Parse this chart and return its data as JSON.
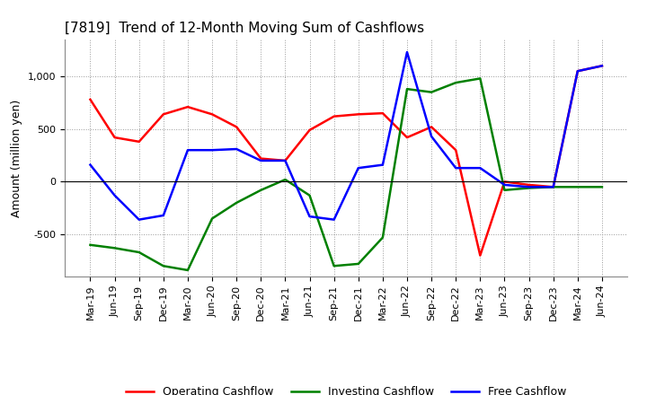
{
  "title": "[7819]  Trend of 12-Month Moving Sum of Cashflows",
  "ylabel": "Amount (million yen)",
  "xlabels": [
    "Mar-19",
    "Jun-19",
    "Sep-19",
    "Dec-19",
    "Mar-20",
    "Jun-20",
    "Sep-20",
    "Dec-20",
    "Mar-21",
    "Jun-21",
    "Sep-21",
    "Dec-21",
    "Mar-22",
    "Jun-22",
    "Sep-22",
    "Dec-22",
    "Mar-23",
    "Jun-23",
    "Sep-23",
    "Dec-23",
    "Mar-24",
    "Jun-24"
  ],
  "operating_cashflow": [
    780,
    420,
    380,
    640,
    710,
    640,
    520,
    220,
    200,
    490,
    620,
    640,
    650,
    420,
    520,
    300,
    -700,
    0,
    -30,
    -50,
    1050,
    1100
  ],
  "investing_cashflow": [
    -600,
    -630,
    -670,
    -800,
    -840,
    -350,
    -200,
    -80,
    20,
    -130,
    -800,
    -780,
    -530,
    880,
    850,
    940,
    980,
    -80,
    -60,
    -50,
    -50,
    -50
  ],
  "free_cashflow": [
    160,
    -130,
    -360,
    -320,
    300,
    300,
    310,
    200,
    200,
    -330,
    -360,
    130,
    160,
    1230,
    430,
    130,
    130,
    -30,
    -50,
    -50,
    1050,
    1100
  ],
  "operating_color": "#ff0000",
  "investing_color": "#008000",
  "free_color": "#0000ff",
  "ylim": [
    -900,
    1350
  ],
  "yticks": [
    -500,
    0,
    500,
    1000
  ],
  "background_color": "#ffffff",
  "grid_color": "#999999",
  "title_fontsize": 11,
  "ylabel_fontsize": 9,
  "tick_fontsize": 8,
  "legend_fontsize": 9,
  "linewidth": 1.8
}
